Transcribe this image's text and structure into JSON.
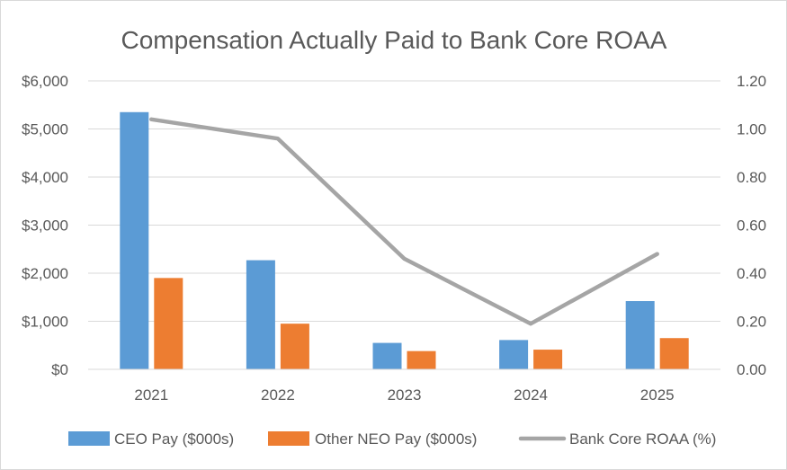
{
  "chart_data": {
    "type": "bar",
    "title": "Compensation Actually Paid to Bank Core ROAA",
    "categories": [
      "2021",
      "2022",
      "2023",
      "2024",
      "2025"
    ],
    "series": [
      {
        "name": "CEO Pay ($000s)",
        "type": "bar",
        "axis": "left",
        "color": "#5B9BD5",
        "values": [
          5350,
          2270,
          550,
          610,
          1420
        ]
      },
      {
        "name": "Other NEO Pay ($000s)",
        "type": "bar",
        "axis": "left",
        "color": "#ED7D31",
        "values": [
          1900,
          950,
          380,
          410,
          650
        ]
      },
      {
        "name": "Bank Core ROAA (%)",
        "type": "line",
        "axis": "right",
        "color": "#A5A5A5",
        "values": [
          1.04,
          0.96,
          0.46,
          0.19,
          0.48
        ]
      }
    ],
    "y_left": {
      "ylim": [
        0,
        6000
      ],
      "ticks": [
        0,
        1000,
        2000,
        3000,
        4000,
        5000,
        6000
      ],
      "tick_labels": [
        "$0",
        "$1,000",
        "$2,000",
        "$3,000",
        "$4,000",
        "$5,000",
        "$6,000"
      ]
    },
    "y_right": {
      "ylim": [
        0,
        1.2
      ],
      "ticks": [
        0,
        0.2,
        0.4,
        0.6,
        0.8,
        1.0,
        1.2
      ],
      "tick_labels": [
        "0.00",
        "0.20",
        "0.40",
        "0.60",
        "0.80",
        "1.00",
        "1.20"
      ]
    },
    "grid": true,
    "legend_position": "bottom",
    "xlabel": "",
    "ylabel": ""
  }
}
